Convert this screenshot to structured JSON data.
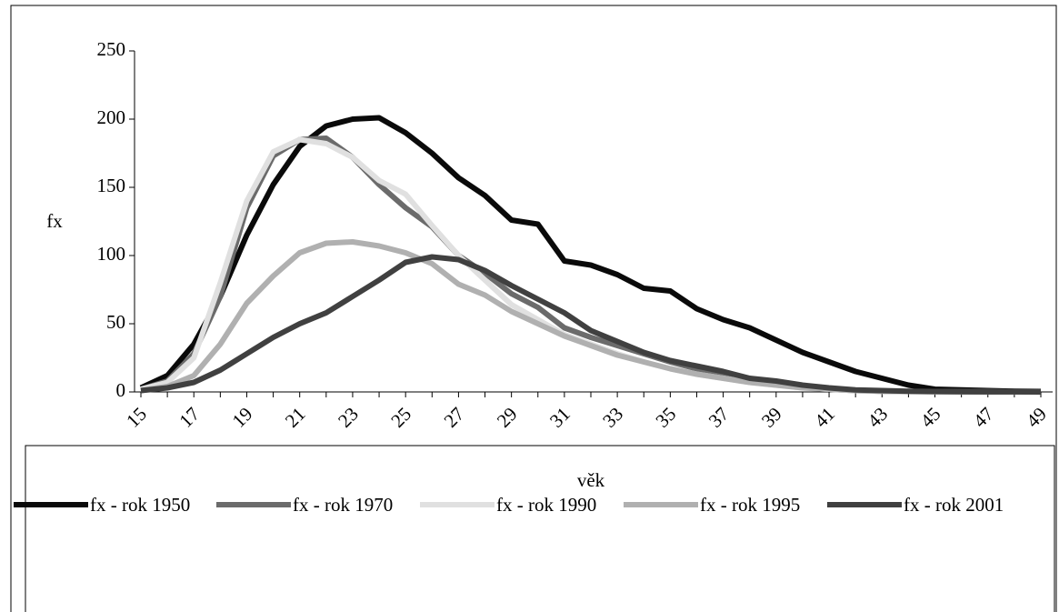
{
  "chart_data": {
    "type": "line",
    "categories": [
      "15",
      null,
      "17",
      null,
      "19",
      null,
      "21",
      null,
      "23",
      null,
      "25",
      null,
      "27",
      null,
      "29",
      null,
      "31",
      null,
      "33",
      null,
      "35",
      null,
      "37",
      null,
      "39",
      null,
      "41",
      null,
      "43",
      null,
      "45",
      null,
      "47",
      null,
      "49"
    ],
    "x_label": "věk",
    "y_label": "fx",
    "ylim": [
      0,
      250
    ],
    "yticks": [
      0,
      50,
      100,
      150,
      200,
      250
    ],
    "legend": "bottom",
    "series": [
      {
        "name": "fx - rok 1950",
        "color": "#0a0a0a",
        "values": [
          3,
          12,
          35,
          70,
          115,
          152,
          180,
          195,
          200,
          201,
          190,
          175,
          157,
          144,
          126,
          123,
          96,
          93,
          86,
          76,
          74,
          61,
          53,
          47,
          38,
          29,
          22,
          15,
          10,
          5,
          2,
          1.5,
          1,
          0.5,
          0.3
        ]
      },
      {
        "name": "fx - rok 1970",
        "color": "#6b6b6b",
        "values": [
          2,
          8,
          28,
          70,
          135,
          173,
          185,
          186,
          172,
          152,
          135,
          121,
          100,
          87,
          72,
          62,
          47,
          40,
          34,
          28,
          22,
          17,
          13,
          9,
          6,
          4,
          2,
          1,
          0.5,
          0.3,
          0.2,
          0.1,
          0.1,
          0,
          0
        ]
      },
      {
        "name": "fx - rok 1990",
        "color": "#e0e0e0",
        "values": [
          2,
          7,
          25,
          80,
          140,
          176,
          185,
          182,
          172,
          155,
          145,
          122,
          100,
          82,
          64,
          53,
          42,
          35,
          28,
          22,
          17,
          13,
          10,
          7,
          5,
          3,
          2,
          1,
          0.5,
          0.3,
          0.2,
          0.1,
          0.1,
          0,
          0
        ]
      },
      {
        "name": "fx - rok 1995",
        "color": "#b0b0b0",
        "values": [
          1,
          4,
          12,
          35,
          65,
          85,
          102,
          109,
          110,
          107,
          102,
          94,
          79,
          71,
          59,
          50,
          41,
          34,
          27,
          22,
          17,
          13,
          10,
          7,
          5,
          3,
          2,
          1,
          0.5,
          0.3,
          0.2,
          0.1,
          0.1,
          0,
          0
        ]
      },
      {
        "name": "fx - rok 2001",
        "color": "#404040",
        "values": [
          1,
          3,
          7,
          16,
          28,
          40,
          50,
          58,
          70,
          82,
          95,
          99,
          97,
          89,
          78,
          68,
          58,
          45,
          37,
          29,
          23,
          19,
          15,
          10,
          8,
          5,
          3,
          1.5,
          1,
          0.5,
          0.3,
          0.2,
          0.1,
          0.1,
          0
        ]
      }
    ]
  }
}
